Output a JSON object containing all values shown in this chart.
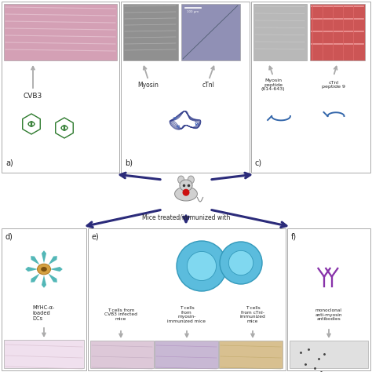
{
  "bg_color": "#ffffff",
  "arrow_color_dark": "#2b2b7a",
  "virus_hex_color_fill": "#ffffff",
  "virus_hex_color_ec": "#2d7a2d",
  "virus_rna_color": "#2d7a2d",
  "myosin_color": "#2e3a8a",
  "tcell_color": "#5bbcdd",
  "tcell_outline": "#3399bb",
  "tcell_inner": "#80d8f0",
  "dc_spike_color": "#40b0b0",
  "dc_body_color": "#d4a040",
  "dc_nucleus_color": "#7a5010",
  "antibody_color": "#8833aa",
  "mouse_body_color": "#d0d0d0",
  "mouse_outline": "#888888",
  "mouse_heart_color": "#cc1111",
  "panel_border_color": "#aaaaaa",
  "gray_arrow_color": "#aaaaaa",
  "text_dark": "#222222",
  "img_a": "#d4a0b5",
  "img_b1": "#909090",
  "img_b2": "#9090b5",
  "img_c1": "#b8b8b8",
  "img_c2": "#cc5555",
  "img_d": "#f0e0ee",
  "img_e1": "#ddc8d8",
  "img_e2": "#c8b8d4",
  "img_e3": "#d8c090",
  "img_f": "#e0e0e0",
  "panel_a_label": "CVB3",
  "panel_b_label1": "Myosin",
  "panel_b_label2": "cTnI",
  "panel_c_label1": "Myosin\npeptide\n(614-643)",
  "panel_c_label2": "cTnI\npeptide 9",
  "center_label": "Mice treated/immunized with",
  "panel_d_label": "MYHC-α-\nloaded\nDCs",
  "panel_e_label1": "T cells from\nCVB3 infected\nmice",
  "panel_e_label2": "T cells\nfrom\nmyosin-\nimmunized mice",
  "panel_e_label3": "T cells\nfrom cTnI-\nimmunized\nmice",
  "panel_f_label": "monoclonal\nanti-myosin\nantibodies"
}
